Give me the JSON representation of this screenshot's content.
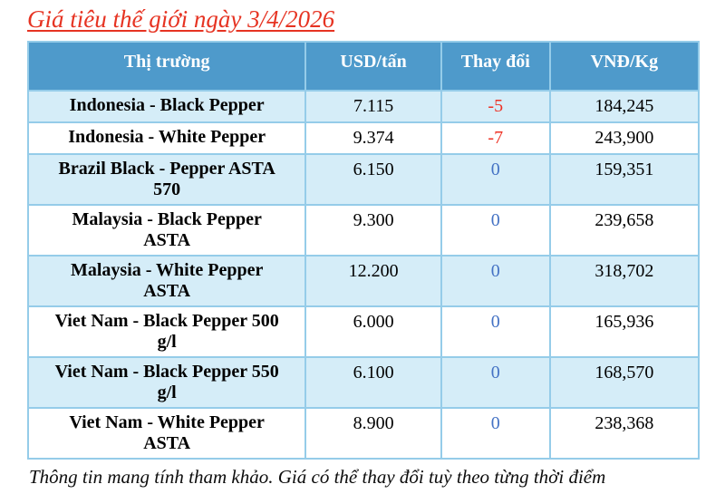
{
  "chart_data": {
    "type": "table",
    "title": "Giá tiêu thế giới ngày 3/4/2026",
    "columns": [
      "Thị trường",
      "USD/tấn",
      "Thay đổi",
      "VNĐ/Kg"
    ],
    "rows": [
      {
        "market": "Indonesia - Black Pepper",
        "usd": "7.115",
        "change": "-5",
        "vnd": "184,245"
      },
      {
        "market": "Indonesia - White Pepper",
        "usd": "9.374",
        "change": "-7",
        "vnd": "243,900"
      },
      {
        "market": "Brazil Black - Pepper ASTA 570",
        "usd": "6.150",
        "change": "0",
        "vnd": "159,351"
      },
      {
        "market": "Malaysia - Black Pepper ASTA",
        "usd": "9.300",
        "change": "0",
        "vnd": "239,658"
      },
      {
        "market": "Malaysia - White Pepper ASTA",
        "usd": "12.200",
        "change": "0",
        "vnd": "318,702"
      },
      {
        "market": "Viet Nam - Black Pepper 500 g/l",
        "usd": "6.000",
        "change": "0",
        "vnd": "165,936"
      },
      {
        "market": "Viet Nam - Black Pepper 550 g/l",
        "usd": "6.100",
        "change": "0",
        "vnd": "168,570"
      },
      {
        "market": "Viet Nam - White Pepper ASTA",
        "usd": "8.900",
        "change": "0",
        "vnd": "238,368"
      }
    ],
    "footnote": "Thông tin mang tính tham khảo. Giá có thể thay đổi tuỳ theo từng thời điểm",
    "layout": {
      "legend": "none",
      "grid": "table-borders",
      "stripe_pattern": "alternating-light-blue"
    }
  },
  "colors": {
    "title_color": "#e63322",
    "header_bg": "#4e9acb",
    "header_text": "#ffffff",
    "row_alt_bg": "#d5edf8",
    "border_color": "#95cce9",
    "change_negative": "#ee3124",
    "change_zero": "#4472c4",
    "body_text": "#000000"
  }
}
